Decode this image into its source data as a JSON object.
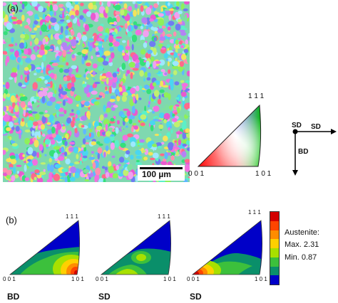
{
  "panel_a": {
    "label": "(a)",
    "scale_bar": "100 µm",
    "ipf_key": {
      "top": "1 1 1",
      "left": "0 0 1",
      "right": "1 0 1"
    },
    "axes": {
      "sd_corner": "SD",
      "sd_arrow": "SD",
      "bd_arrow": "BD"
    }
  },
  "panel_b": {
    "label": "(b)",
    "figures": [
      {
        "direction": "BD",
        "top": "1 1 1",
        "left": "0 0 1",
        "right": "1 0 1"
      },
      {
        "direction": "SD",
        "top": "1 1 1",
        "left": "0 0 1",
        "right": "1 0 1"
      },
      {
        "direction": "SD",
        "top": "1 1 1",
        "left": "0 0 1",
        "right": "1 0 1"
      }
    ],
    "legend": {
      "title": "Austenite:",
      "max": "Max. 2.31",
      "min": "Min. 0.87",
      "colors": [
        "#d40000",
        "#ff4500",
        "#ff8c00",
        "#ffd000",
        "#a8e000",
        "#3cc03c",
        "#0a8f6a",
        "#0000c8"
      ]
    }
  }
}
